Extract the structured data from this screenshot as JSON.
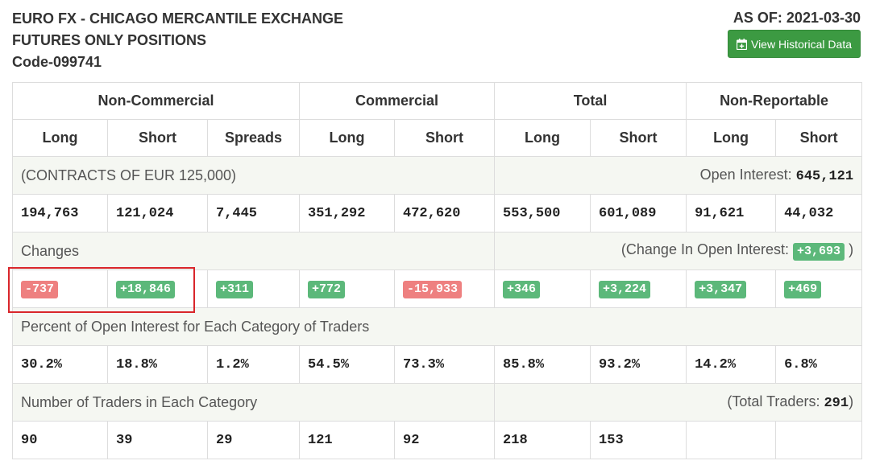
{
  "header": {
    "title_line1": "EURO FX - CHICAGO MERCANTILE EXCHANGE",
    "title_line2": "FUTURES ONLY POSITIONS",
    "code": "Code-099741",
    "as_of": "AS OF: 2021-03-30",
    "historical_button": "View Historical Data"
  },
  "groups": [
    "Non-Commercial",
    "Commercial",
    "Total",
    "Non-Reportable"
  ],
  "columns": [
    "Long",
    "Short",
    "Spreads",
    "Long",
    "Short",
    "Long",
    "Short",
    "Long",
    "Short"
  ],
  "contracts": {
    "label": "(CONTRACTS OF EUR 125,000)",
    "oi_label": "Open Interest: ",
    "oi_value": "645,121",
    "values": [
      "194,763",
      "121,024",
      "7,445",
      "351,292",
      "472,620",
      "553,500",
      "601,089",
      "91,621",
      "44,032"
    ]
  },
  "changes": {
    "label": "Changes",
    "oi_prefix": "(Change In Open Interest: ",
    "oi_value": "+3,693",
    "oi_suffix": " )",
    "values": [
      "-737",
      "+18,846",
      "+311",
      "+772",
      "-15,933",
      "+346",
      "+3,224",
      "+3,347",
      "+469"
    ]
  },
  "percent": {
    "label": "Percent of Open Interest for Each Category of Traders",
    "values": [
      "30.2%",
      "18.8%",
      "1.2%",
      "54.5%",
      "73.3%",
      "85.8%",
      "93.2%",
      "14.2%",
      "6.8%"
    ]
  },
  "traders": {
    "label": "Number of Traders in Each Category",
    "total_prefix": "(Total Traders: ",
    "total_value": "291",
    "total_suffix": ")",
    "values": [
      "90",
      "39",
      "29",
      "121",
      "92",
      "218",
      "153",
      "",
      ""
    ]
  },
  "colors": {
    "positive": "#5cb87a",
    "negative": "#ee8080",
    "button": "#3c9a42",
    "highlight": "#d9262b"
  }
}
